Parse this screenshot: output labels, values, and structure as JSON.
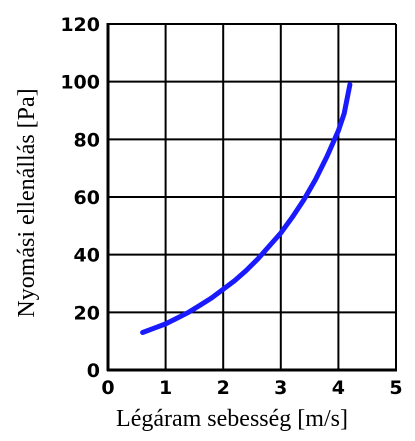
{
  "chart_data": {
    "type": "line",
    "title": "",
    "xlabel": "Légáram sebesség [m/s]",
    "ylabel": "Nyomási ellenállás [Pa]",
    "xlim": [
      0,
      5
    ],
    "ylim": [
      0,
      120
    ],
    "xticks": [
      "0",
      "1",
      "2",
      "3",
      "4",
      "5"
    ],
    "yticks": [
      "0",
      "20",
      "40",
      "60",
      "80",
      "100",
      "120"
    ],
    "grid": true,
    "series": [
      {
        "color": "#1a1aff",
        "x": [
          0.6,
          0.8,
          1.0,
          1.2,
          1.4,
          1.6,
          1.8,
          2.0,
          2.2,
          2.4,
          2.6,
          2.8,
          3.0,
          3.2,
          3.4,
          3.6,
          3.8,
          4.0,
          4.1,
          4.2
        ],
        "y": [
          13,
          14.5,
          16,
          18,
          20,
          22.5,
          25,
          28,
          31,
          34.5,
          38.5,
          43,
          47.5,
          53,
          59,
          66,
          74,
          83,
          89,
          99
        ]
      }
    ]
  }
}
